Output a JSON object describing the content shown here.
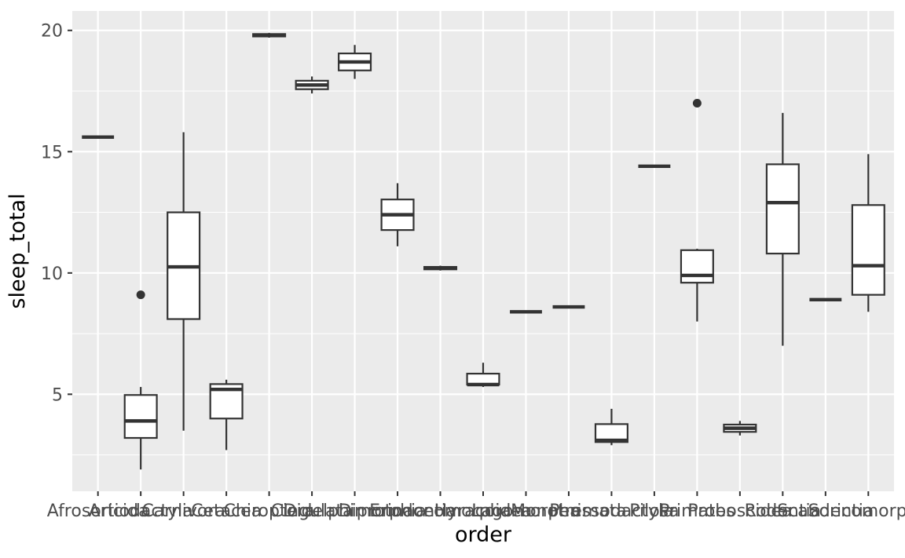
{
  "chart_data": {
    "type": "boxplot",
    "x_label": "order",
    "y_label": "sleep_total",
    "ylim": [
      1.0,
      20.8
    ],
    "yticks": [
      5,
      10,
      15,
      20
    ],
    "grid": true,
    "categories": [
      "Afrosoricida",
      "Artiodactyla",
      "Carnivora",
      "Cetacea",
      "Chiroptera",
      "Cingulata",
      "Didelphimorphia",
      "Diprotodontia",
      "Erinaceomorpha",
      "Hyracoidea",
      "Lagomorpha",
      "Monotremata",
      "Perissodactyla",
      "Pilosa",
      "Primates",
      "Proboscidea",
      "Rodentia",
      "Scandentia",
      "Soricomorpha"
    ],
    "boxes": [
      {
        "min": 15.6,
        "q1": 15.6,
        "median": 15.6,
        "q3": 15.6,
        "max": 15.6
      },
      {
        "min": 1.9,
        "q1": 3.2,
        "median": 3.9,
        "q3": 4.97,
        "max": 5.3,
        "outliers": [
          9.1
        ]
      },
      {
        "min": 3.5,
        "q1": 8.1,
        "median": 10.25,
        "q3": 12.5,
        "max": 15.8
      },
      {
        "min": 2.7,
        "q1": 4.0,
        "median": 5.2,
        "q3": 5.42,
        "max": 5.6
      },
      {
        "min": 19.7,
        "q1": 19.75,
        "median": 19.8,
        "q3": 19.85,
        "max": 19.9
      },
      {
        "min": 17.4,
        "q1": 17.575,
        "median": 17.75,
        "q3": 17.925,
        "max": 18.1
      },
      {
        "min": 18.0,
        "q1": 18.35,
        "median": 18.7,
        "q3": 19.05,
        "max": 19.4
      },
      {
        "min": 11.1,
        "q1": 11.77,
        "median": 12.4,
        "q3": 13.03,
        "max": 13.7
      },
      {
        "min": 10.1,
        "q1": 10.15,
        "median": 10.2,
        "q3": 10.25,
        "max": 10.3
      },
      {
        "min": 5.3,
        "q1": 5.4,
        "median": 5.4,
        "q3": 5.85,
        "max": 6.3
      },
      {
        "min": 8.4,
        "q1": 8.4,
        "median": 8.4,
        "q3": 8.4,
        "max": 8.4
      },
      {
        "min": 8.6,
        "q1": 8.6,
        "median": 8.6,
        "q3": 8.6,
        "max": 8.6
      },
      {
        "min": 2.9,
        "q1": 3.03,
        "median": 3.1,
        "q3": 3.77,
        "max": 4.4
      },
      {
        "min": 14.4,
        "q1": 14.4,
        "median": 14.4,
        "q3": 14.4,
        "max": 14.4
      },
      {
        "min": 8.0,
        "q1": 9.6,
        "median": 9.9,
        "q3": 10.94,
        "max": 11.0,
        "outliers": [
          17.0
        ]
      },
      {
        "min": 3.3,
        "q1": 3.45,
        "median": 3.6,
        "q3": 3.75,
        "max": 3.9
      },
      {
        "min": 7.0,
        "q1": 10.8,
        "median": 12.9,
        "q3": 14.48,
        "max": 16.6
      },
      {
        "min": 8.9,
        "q1": 8.9,
        "median": 8.9,
        "q3": 8.9,
        "max": 8.9
      },
      {
        "min": 8.4,
        "q1": 9.1,
        "median": 10.3,
        "q3": 12.8,
        "max": 14.9
      }
    ]
  }
}
